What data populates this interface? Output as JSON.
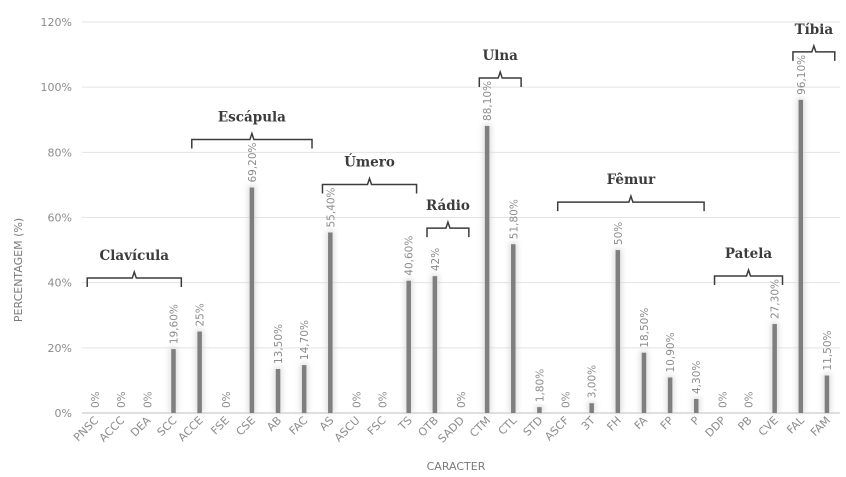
{
  "chart_data": {
    "type": "bar",
    "xlabel": "CARACTER",
    "ylabel": "PERCENTAGEM (%)",
    "ylim": [
      0,
      120
    ],
    "y_ticks": [
      "0%",
      "20%",
      "40%",
      "60%",
      "80%",
      "100%",
      "120%"
    ],
    "grid": true,
    "categories": [
      "PNSC",
      "ACCC",
      "DEA",
      "SCC",
      "ACCE",
      "FSE",
      "CSE",
      "AB",
      "FAC",
      "AS",
      "ASCU",
      "FSC",
      "TS",
      "OTB",
      "SADD",
      "CTM",
      "CTL",
      "STD",
      "ASCF",
      "3T",
      "FH",
      "FA",
      "FP",
      "P",
      "DDP",
      "PB",
      "CVE",
      "FAL",
      "FAM"
    ],
    "values": [
      0,
      0,
      0,
      19.6,
      25,
      0,
      69.2,
      13.5,
      14.7,
      55.4,
      0,
      0,
      40.6,
      42,
      0,
      88.1,
      51.8,
      1.8,
      0,
      3.0,
      50,
      18.5,
      10.9,
      4.3,
      0,
      0,
      27.3,
      96.1,
      11.5
    ],
    "data_labels": [
      "0%",
      "0%",
      "0%",
      "19,60%",
      "25%",
      "0%",
      "69,20%",
      "13,50%",
      "14,70%",
      "55,40%",
      "0%",
      "0%",
      "40,60%",
      "42%",
      "0%",
      "88,10%",
      "51,80%",
      "1,80%",
      "0%",
      "3,00%",
      "50%",
      "18,50%",
      "10,90%",
      "4,30%",
      "0%",
      "0%",
      "27,30%",
      "96,10%",
      "11,50%"
    ],
    "groups": [
      {
        "name": "Clavícula",
        "from": 0,
        "to": 3
      },
      {
        "name": "Escápula",
        "from": 4,
        "to": 8
      },
      {
        "name": "Úmero",
        "from": 9,
        "to": 12
      },
      {
        "name": "Rádio",
        "from": 13,
        "to": 14
      },
      {
        "name": "Ulna",
        "from": 15,
        "to": 16
      },
      {
        "name": "Fêmur",
        "from": 18,
        "to": 23
      },
      {
        "name": "Patela",
        "from": 24,
        "to": 26
      },
      {
        "name": "Tíbia",
        "from": 27,
        "to": 28
      }
    ],
    "bar_color": "#7f7f7f",
    "grid_color": "#e3e3e3"
  }
}
